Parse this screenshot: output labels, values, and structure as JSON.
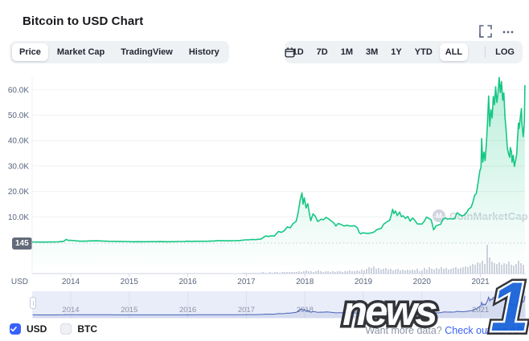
{
  "header": {
    "title": "Bitcoin to USD Chart"
  },
  "toolbar": {
    "tabs": [
      {
        "id": "price",
        "label": "Price",
        "active": true
      },
      {
        "id": "market-cap",
        "label": "Market Cap",
        "active": false
      },
      {
        "id": "tradingview",
        "label": "TradingView",
        "active": false
      },
      {
        "id": "history",
        "label": "History",
        "active": false
      }
    ],
    "ranges": [
      {
        "id": "1d",
        "label": "1D",
        "active": false
      },
      {
        "id": "7d",
        "label": "7D",
        "active": false
      },
      {
        "id": "1m",
        "label": "1M",
        "active": false
      },
      {
        "id": "3m",
        "label": "3M",
        "active": false
      },
      {
        "id": "1y",
        "label": "1Y",
        "active": false
      },
      {
        "id": "ytd",
        "label": "YTD",
        "active": false
      },
      {
        "id": "all",
        "label": "ALL",
        "active": true
      }
    ],
    "log_label": "LOG"
  },
  "chart": {
    "min_price_label": "145",
    "watermark_logo_letter": "M",
    "watermark_label": "CoinMarketCap"
  },
  "legend": {
    "usd": {
      "label": "USD",
      "checked": true
    },
    "btc": {
      "label": "BTC",
      "checked": false
    }
  },
  "footer": {
    "prompt": "Want more data?",
    "link_label": "Check out our API"
  },
  "watermark_news1": {
    "word": "news",
    "one": "1"
  },
  "colors": {
    "accent_green": "#16c784",
    "accent_blue": "#3861fb",
    "nav_line": "#4a63b8",
    "axis_text": "#58667e",
    "badge_bg": "#636b7a",
    "group_bg": "#eff2f5"
  },
  "chart_data": {
    "type": "line",
    "title": "Bitcoin to USD Chart",
    "legend_position": "none",
    "grid": "horizontal",
    "y_axis": {
      "unit": "USD",
      "min_label": "145",
      "ylim": [
        0,
        66000
      ],
      "ticks": [
        {
          "value": 60000,
          "label": "60.0K"
        },
        {
          "value": 50000,
          "label": "50.0K"
        },
        {
          "value": 40000,
          "label": "40.0K"
        },
        {
          "value": 30000,
          "label": "30.0K"
        },
        {
          "value": 20000,
          "label": "20.0K"
        },
        {
          "value": 10000,
          "label": "10.0K"
        }
      ]
    },
    "x_axis": {
      "years": [
        2014,
        2015,
        2016,
        2017,
        2018,
        2019,
        2020,
        2021
      ],
      "range": [
        2013.35,
        2021.76
      ]
    },
    "series": [
      {
        "name": "BTC price (USD)",
        "points": [
          [
            2013.35,
            145
          ],
          [
            2013.5,
            110
          ],
          [
            2013.65,
            120
          ],
          [
            2013.78,
            200
          ],
          [
            2013.88,
            400
          ],
          [
            2013.92,
            1120
          ],
          [
            2013.96,
            760
          ],
          [
            2014.0,
            770
          ],
          [
            2014.08,
            620
          ],
          [
            2014.15,
            450
          ],
          [
            2014.25,
            440
          ],
          [
            2014.35,
            580
          ],
          [
            2014.45,
            590
          ],
          [
            2014.55,
            490
          ],
          [
            2014.65,
            400
          ],
          [
            2014.75,
            370
          ],
          [
            2014.85,
            350
          ],
          [
            2014.95,
            320
          ],
          [
            2015.05,
            220
          ],
          [
            2015.15,
            240
          ],
          [
            2015.25,
            235
          ],
          [
            2015.35,
            240
          ],
          [
            2015.45,
            260
          ],
          [
            2015.55,
            270
          ],
          [
            2015.65,
            230
          ],
          [
            2015.75,
            260
          ],
          [
            2015.85,
            310
          ],
          [
            2015.95,
            360
          ],
          [
            2015.98,
            430
          ],
          [
            2016.05,
            380
          ],
          [
            2016.15,
            415
          ],
          [
            2016.25,
            420
          ],
          [
            2016.35,
            450
          ],
          [
            2016.45,
            530
          ],
          [
            2016.5,
            660
          ],
          [
            2016.55,
            650
          ],
          [
            2016.6,
            590
          ],
          [
            2016.7,
            610
          ],
          [
            2016.8,
            640
          ],
          [
            2016.9,
            720
          ],
          [
            2016.97,
            960
          ],
          [
            2017.05,
            1000
          ],
          [
            2017.1,
            1150
          ],
          [
            2017.15,
            1050
          ],
          [
            2017.2,
            1180
          ],
          [
            2017.25,
            1300
          ],
          [
            2017.33,
            2500
          ],
          [
            2017.38,
            2300
          ],
          [
            2017.42,
            2550
          ],
          [
            2017.48,
            2450
          ],
          [
            2017.55,
            4300
          ],
          [
            2017.6,
            3900
          ],
          [
            2017.65,
            4600
          ],
          [
            2017.7,
            6100
          ],
          [
            2017.75,
            5700
          ],
          [
            2017.8,
            7400
          ],
          [
            2017.85,
            8200
          ],
          [
            2017.88,
            11000
          ],
          [
            2017.92,
            16700
          ],
          [
            2017.95,
            19400
          ],
          [
            2017.97,
            15000
          ],
          [
            2017.99,
            17500
          ],
          [
            2018.02,
            13500
          ],
          [
            2018.05,
            15200
          ],
          [
            2018.08,
            11000
          ],
          [
            2018.1,
            8500
          ],
          [
            2018.14,
            11200
          ],
          [
            2018.18,
            10200
          ],
          [
            2018.22,
            8200
          ],
          [
            2018.28,
            9100
          ],
          [
            2018.32,
            8900
          ],
          [
            2018.36,
            9800
          ],
          [
            2018.4,
            9300
          ],
          [
            2018.45,
            8400
          ],
          [
            2018.5,
            7500
          ],
          [
            2018.53,
            6400
          ],
          [
            2018.57,
            7400
          ],
          [
            2018.62,
            7000
          ],
          [
            2018.67,
            6400
          ],
          [
            2018.72,
            6700
          ],
          [
            2018.77,
            6400
          ],
          [
            2018.82,
            6500
          ],
          [
            2018.86,
            6400
          ],
          [
            2018.9,
            5600
          ],
          [
            2018.93,
            3800
          ],
          [
            2018.96,
            3300
          ],
          [
            2018.99,
            3800
          ],
          [
            2019.03,
            3600
          ],
          [
            2019.08,
            3500
          ],
          [
            2019.13,
            3700
          ],
          [
            2019.18,
            4000
          ],
          [
            2019.24,
            5100
          ],
          [
            2019.3,
            5400
          ],
          [
            2019.35,
            7200
          ],
          [
            2019.4,
            8000
          ],
          [
            2019.45,
            8700
          ],
          [
            2019.48,
            11000
          ],
          [
            2019.5,
            13000
          ],
          [
            2019.52,
            11300
          ],
          [
            2019.55,
            12300
          ],
          [
            2019.58,
            10500
          ],
          [
            2019.62,
            11900
          ],
          [
            2019.65,
            10100
          ],
          [
            2019.68,
            10400
          ],
          [
            2019.72,
            9400
          ],
          [
            2019.76,
            10200
          ],
          [
            2019.8,
            8300
          ],
          [
            2019.84,
            9600
          ],
          [
            2019.88,
            8600
          ],
          [
            2019.92,
            7300
          ],
          [
            2019.96,
            7200
          ],
          [
            2020.0,
            7200
          ],
          [
            2020.04,
            8300
          ],
          [
            2020.08,
            9900
          ],
          [
            2020.12,
            9400
          ],
          [
            2020.16,
            8800
          ],
          [
            2020.2,
            4900
          ],
          [
            2020.24,
            6400
          ],
          [
            2020.28,
            6800
          ],
          [
            2020.32,
            7100
          ],
          [
            2020.36,
            9000
          ],
          [
            2020.4,
            9600
          ],
          [
            2020.44,
            9100
          ],
          [
            2020.48,
            9300
          ],
          [
            2020.52,
            9200
          ],
          [
            2020.56,
            9400
          ],
          [
            2020.6,
            11600
          ],
          [
            2020.64,
            11000
          ],
          [
            2020.68,
            10300
          ],
          [
            2020.72,
            10700
          ],
          [
            2020.76,
            11500
          ],
          [
            2020.8,
            13100
          ],
          [
            2020.84,
            13800
          ],
          [
            2020.87,
            15600
          ],
          [
            2020.9,
            18400
          ],
          [
            2020.93,
            19200
          ],
          [
            2020.96,
            23500
          ],
          [
            2020.99,
            28200
          ],
          [
            2021.01,
            29300
          ],
          [
            2021.02,
            40800
          ],
          [
            2021.04,
            31500
          ],
          [
            2021.06,
            35500
          ],
          [
            2021.08,
            32100
          ],
          [
            2021.1,
            38300
          ],
          [
            2021.12,
            46400
          ],
          [
            2021.14,
            57500
          ],
          [
            2021.16,
            45600
          ],
          [
            2021.18,
            52100
          ],
          [
            2021.2,
            48900
          ],
          [
            2021.22,
            57400
          ],
          [
            2021.24,
            54100
          ],
          [
            2021.26,
            61200
          ],
          [
            2021.28,
            55000
          ],
          [
            2021.3,
            58300
          ],
          [
            2021.32,
            64800
          ],
          [
            2021.34,
            58900
          ],
          [
            2021.36,
            63200
          ],
          [
            2021.38,
            55900
          ],
          [
            2021.4,
            58700
          ],
          [
            2021.42,
            49000
          ],
          [
            2021.44,
            43700
          ],
          [
            2021.46,
            37000
          ],
          [
            2021.48,
            34900
          ],
          [
            2021.5,
            33400
          ],
          [
            2021.51,
            37300
          ],
          [
            2021.53,
            35600
          ],
          [
            2021.54,
            31500
          ],
          [
            2021.56,
            34200
          ],
          [
            2021.58,
            29800
          ],
          [
            2021.6,
            32100
          ],
          [
            2021.62,
            34600
          ],
          [
            2021.63,
            39500
          ],
          [
            2021.65,
            46800
          ],
          [
            2021.66,
            44700
          ],
          [
            2021.68,
            48800
          ],
          [
            2021.7,
            52600
          ],
          [
            2021.71,
            46000
          ],
          [
            2021.72,
            44600
          ],
          [
            2021.73,
            41500
          ],
          [
            2021.74,
            43800
          ],
          [
            2021.75,
            48100
          ],
          [
            2021.755,
            54700
          ],
          [
            2021.76,
            61600
          ]
        ]
      }
    ],
    "volume": {
      "note": "relative bar heights (px, est.) left-to-right from mid-2016 to late 2021",
      "relative_heights": [
        1,
        1,
        1,
        1,
        1,
        1,
        1,
        1,
        2,
        1,
        1,
        2,
        1,
        2,
        2,
        1,
        2,
        2,
        2,
        2,
        2,
        2,
        2,
        3,
        2,
        3,
        4,
        3,
        3,
        2,
        3,
        4,
        3,
        2,
        3,
        3,
        2,
        3,
        2,
        3,
        3,
        2,
        3,
        3,
        4,
        3,
        3,
        4,
        3,
        5,
        4,
        6,
        8,
        7,
        9,
        6,
        7,
        5,
        6,
        7,
        5,
        6,
        4,
        5,
        6,
        4,
        5,
        4,
        5,
        4,
        5,
        4,
        6,
        3,
        4,
        7,
        5,
        8,
        6,
        5,
        7,
        6,
        8,
        6,
        7,
        5,
        6,
        7,
        8,
        6,
        7,
        8,
        9,
        8,
        10,
        12,
        11,
        14,
        13,
        16,
        12,
        36,
        20,
        15,
        13,
        12,
        14,
        11,
        13,
        12,
        15,
        11,
        10,
        12,
        16,
        13,
        11
      ]
    },
    "navigator": {
      "years": [
        2014,
        2015,
        2016,
        2017,
        2018,
        2019,
        2020,
        2021
      ]
    }
  }
}
